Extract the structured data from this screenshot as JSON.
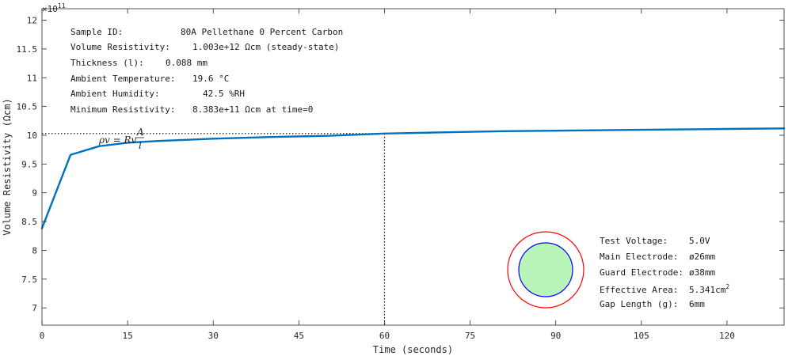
{
  "chart_data": {
    "type": "line",
    "xlabel": "Time (seconds)",
    "ylabel": "Volume Resistivity (Ωcm)",
    "y_exponent_base": "×10",
    "y_exponent_power": "11",
    "xlim": [
      0,
      130
    ],
    "ylim": [
      6.7,
      12.2
    ],
    "x_ticks": [
      0,
      15,
      30,
      45,
      60,
      75,
      90,
      105,
      120
    ],
    "x_tick_labels": [
      "0",
      "15",
      "30",
      "45",
      "60",
      "75",
      "90",
      "105",
      "120"
    ],
    "y_ticks": [
      7,
      7.5,
      8,
      8.5,
      9,
      9.5,
      10,
      10.5,
      11,
      11.5,
      12
    ],
    "y_tick_labels": [
      "7",
      "7.5",
      "8",
      "8.5",
      "9",
      "9.5",
      "10",
      "10.5",
      "11",
      "11.5",
      "12"
    ],
    "grid": false,
    "series": [
      {
        "color": "#0072bd",
        "x": [
          0,
          5,
          10,
          15,
          20,
          30,
          40,
          50,
          60,
          70,
          80,
          90,
          100,
          110,
          120,
          130
        ],
        "y": [
          8.383,
          9.66,
          9.81,
          9.87,
          9.9,
          9.94,
          9.97,
          9.99,
          10.03,
          10.05,
          10.07,
          10.08,
          10.09,
          10.1,
          10.11,
          10.12
        ]
      }
    ],
    "reference_lines": {
      "x": 60,
      "y": 10.03,
      "color": "#000000",
      "style": "dotted"
    }
  },
  "formula": {
    "lhs": "ρv = Rv",
    "numerator": "A",
    "denominator": "l"
  },
  "info": [
    {
      "label": "Sample ID:",
      "value": "80A Pellethane 0 Percent Carbon"
    },
    {
      "label": "Volume Resistivity:",
      "value": "1.003e+12 Ωcm  (steady-state)"
    },
    {
      "label": "Thickness (l):",
      "value": "0.088 mm"
    },
    {
      "label": "Ambient Temperature:",
      "value": "19.6 °C"
    },
    {
      "label": "Ambient Humidity:",
      "value": "42.5 %RH"
    },
    {
      "label": "Minimum Resistivity:",
      "value": "8.383e+11 Ωcm at time=0"
    }
  ],
  "electrode": {
    "test_voltage_label": "Test Voltage:",
    "test_voltage_value": "5.0V",
    "main_label": "Main Electrode:",
    "main_value": "ø26mm",
    "main_color": "#0000ff",
    "guard_label": "Guard Electrode:",
    "guard_value": "ø38mm",
    "guard_color": "#ff0000",
    "area_label": "Effective Area:",
    "area_value": "5.341cm",
    "area_sup": "2",
    "area_color": "#008000",
    "area_fill": "#b9f5b9",
    "gap_label": "Gap Length (g):",
    "gap_value": "6mm"
  }
}
